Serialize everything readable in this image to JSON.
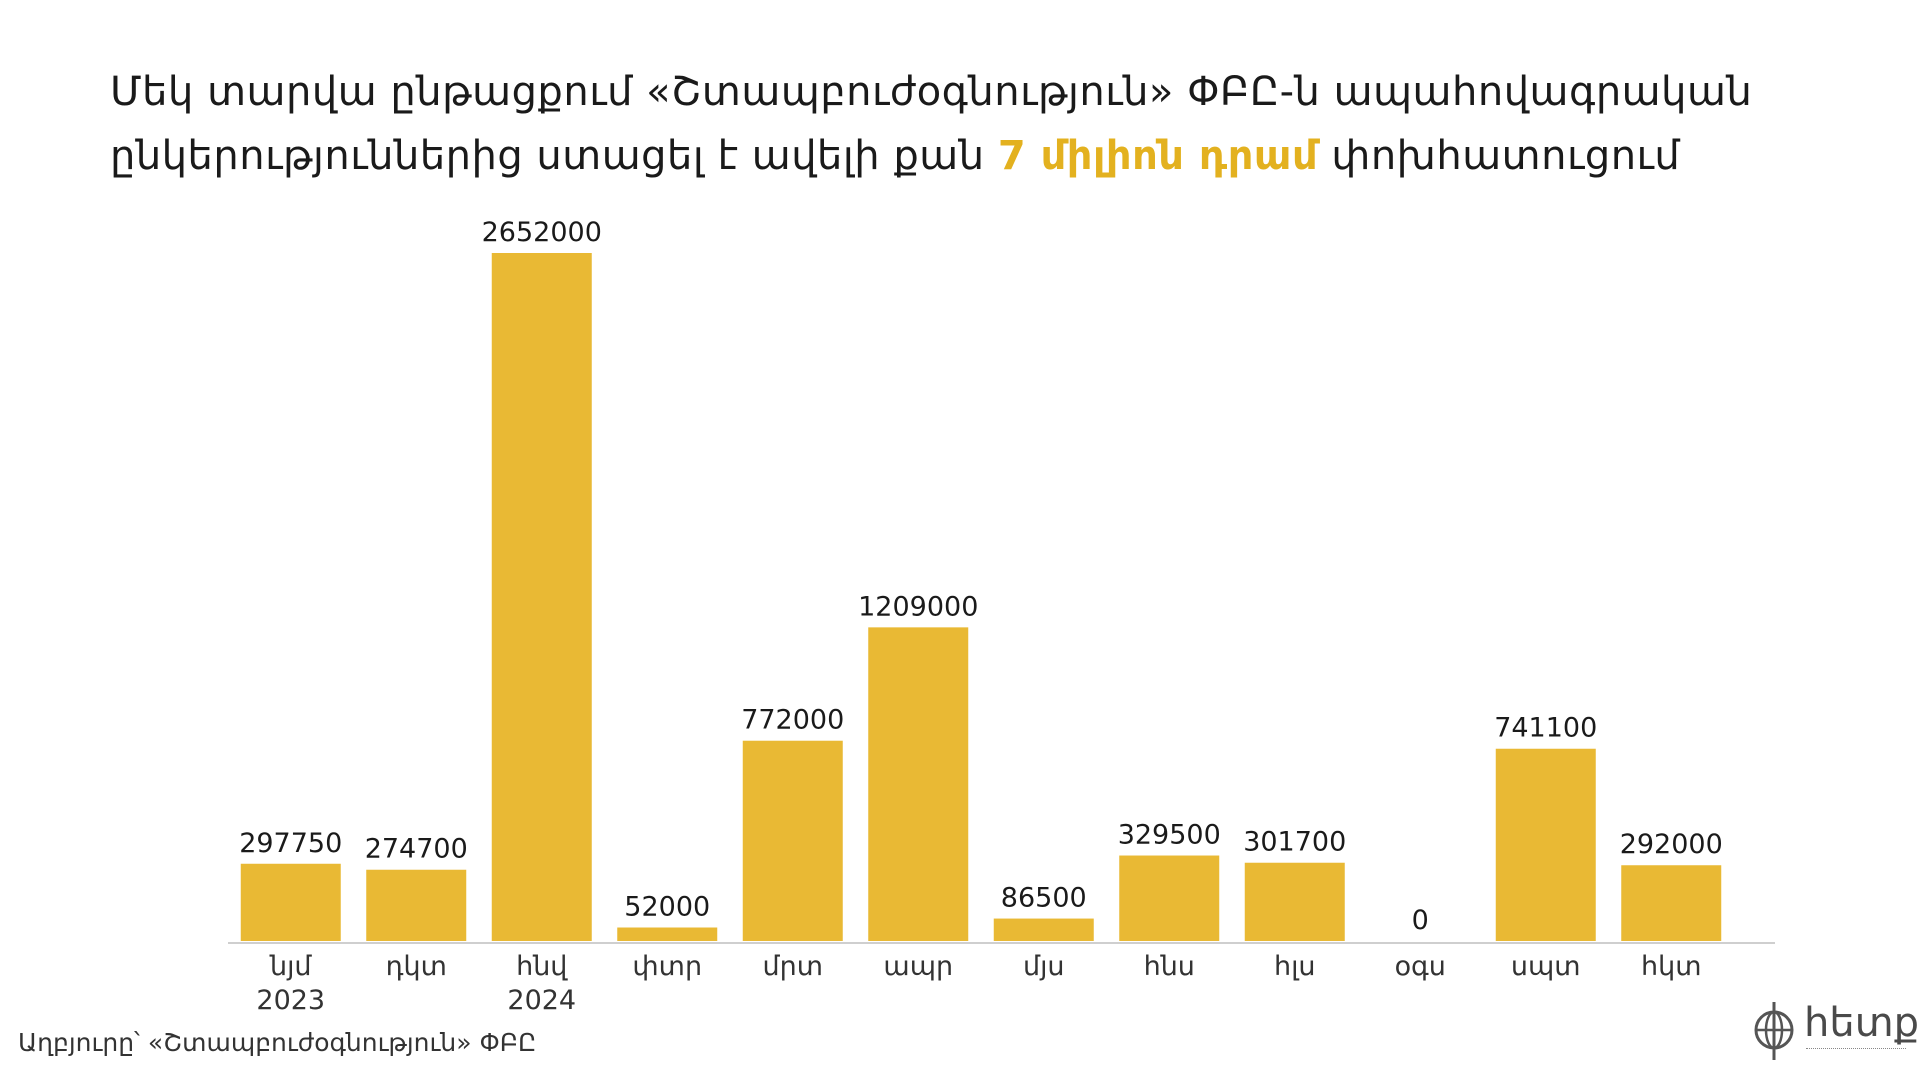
{
  "header": {
    "title_part1": "Մեկ տարվա ընթացքում «Շտապբուժօգնություն» ՓԲԸ-ն ապահովագրական ընկերություններից ստացել է ավելի քան ",
    "title_highlight": "7  միլիոն  դրամ",
    "title_part2": " փոխհատուցում"
  },
  "source": "Աղբյուրը՝  «Շտապբուժօգնություն» ՓԲԸ",
  "logo": {
    "text": "հետք",
    "icon": "globe-logo-icon"
  },
  "colors": {
    "bar": "#e9b934",
    "highlight": "#e3b11f",
    "axis": "#cfcfcf"
  },
  "chart_data": {
    "type": "bar",
    "categories": [
      [
        "նյմ",
        "2023"
      ],
      [
        "դկտ"
      ],
      [
        "հնվ",
        "2024"
      ],
      [
        "փտր"
      ],
      [
        "մրտ"
      ],
      [
        "ապր"
      ],
      [
        "մյս"
      ],
      [
        "հնս"
      ],
      [
        "հլս"
      ],
      [
        "օգս"
      ],
      [
        "սպտ"
      ],
      [
        "հկտ"
      ]
    ],
    "values": [
      297750,
      274700,
      2652000,
      52000,
      772000,
      1209000,
      86500,
      329500,
      301700,
      0,
      741100,
      292000
    ],
    "value_labels": [
      "297750",
      "274700",
      "2652000",
      "52000",
      "772000",
      "1209000",
      "86500",
      "329500",
      "301700",
      "0",
      "741100",
      "292000"
    ],
    "ylim": [
      0,
      2652000
    ],
    "grid": false,
    "legend": "none"
  }
}
